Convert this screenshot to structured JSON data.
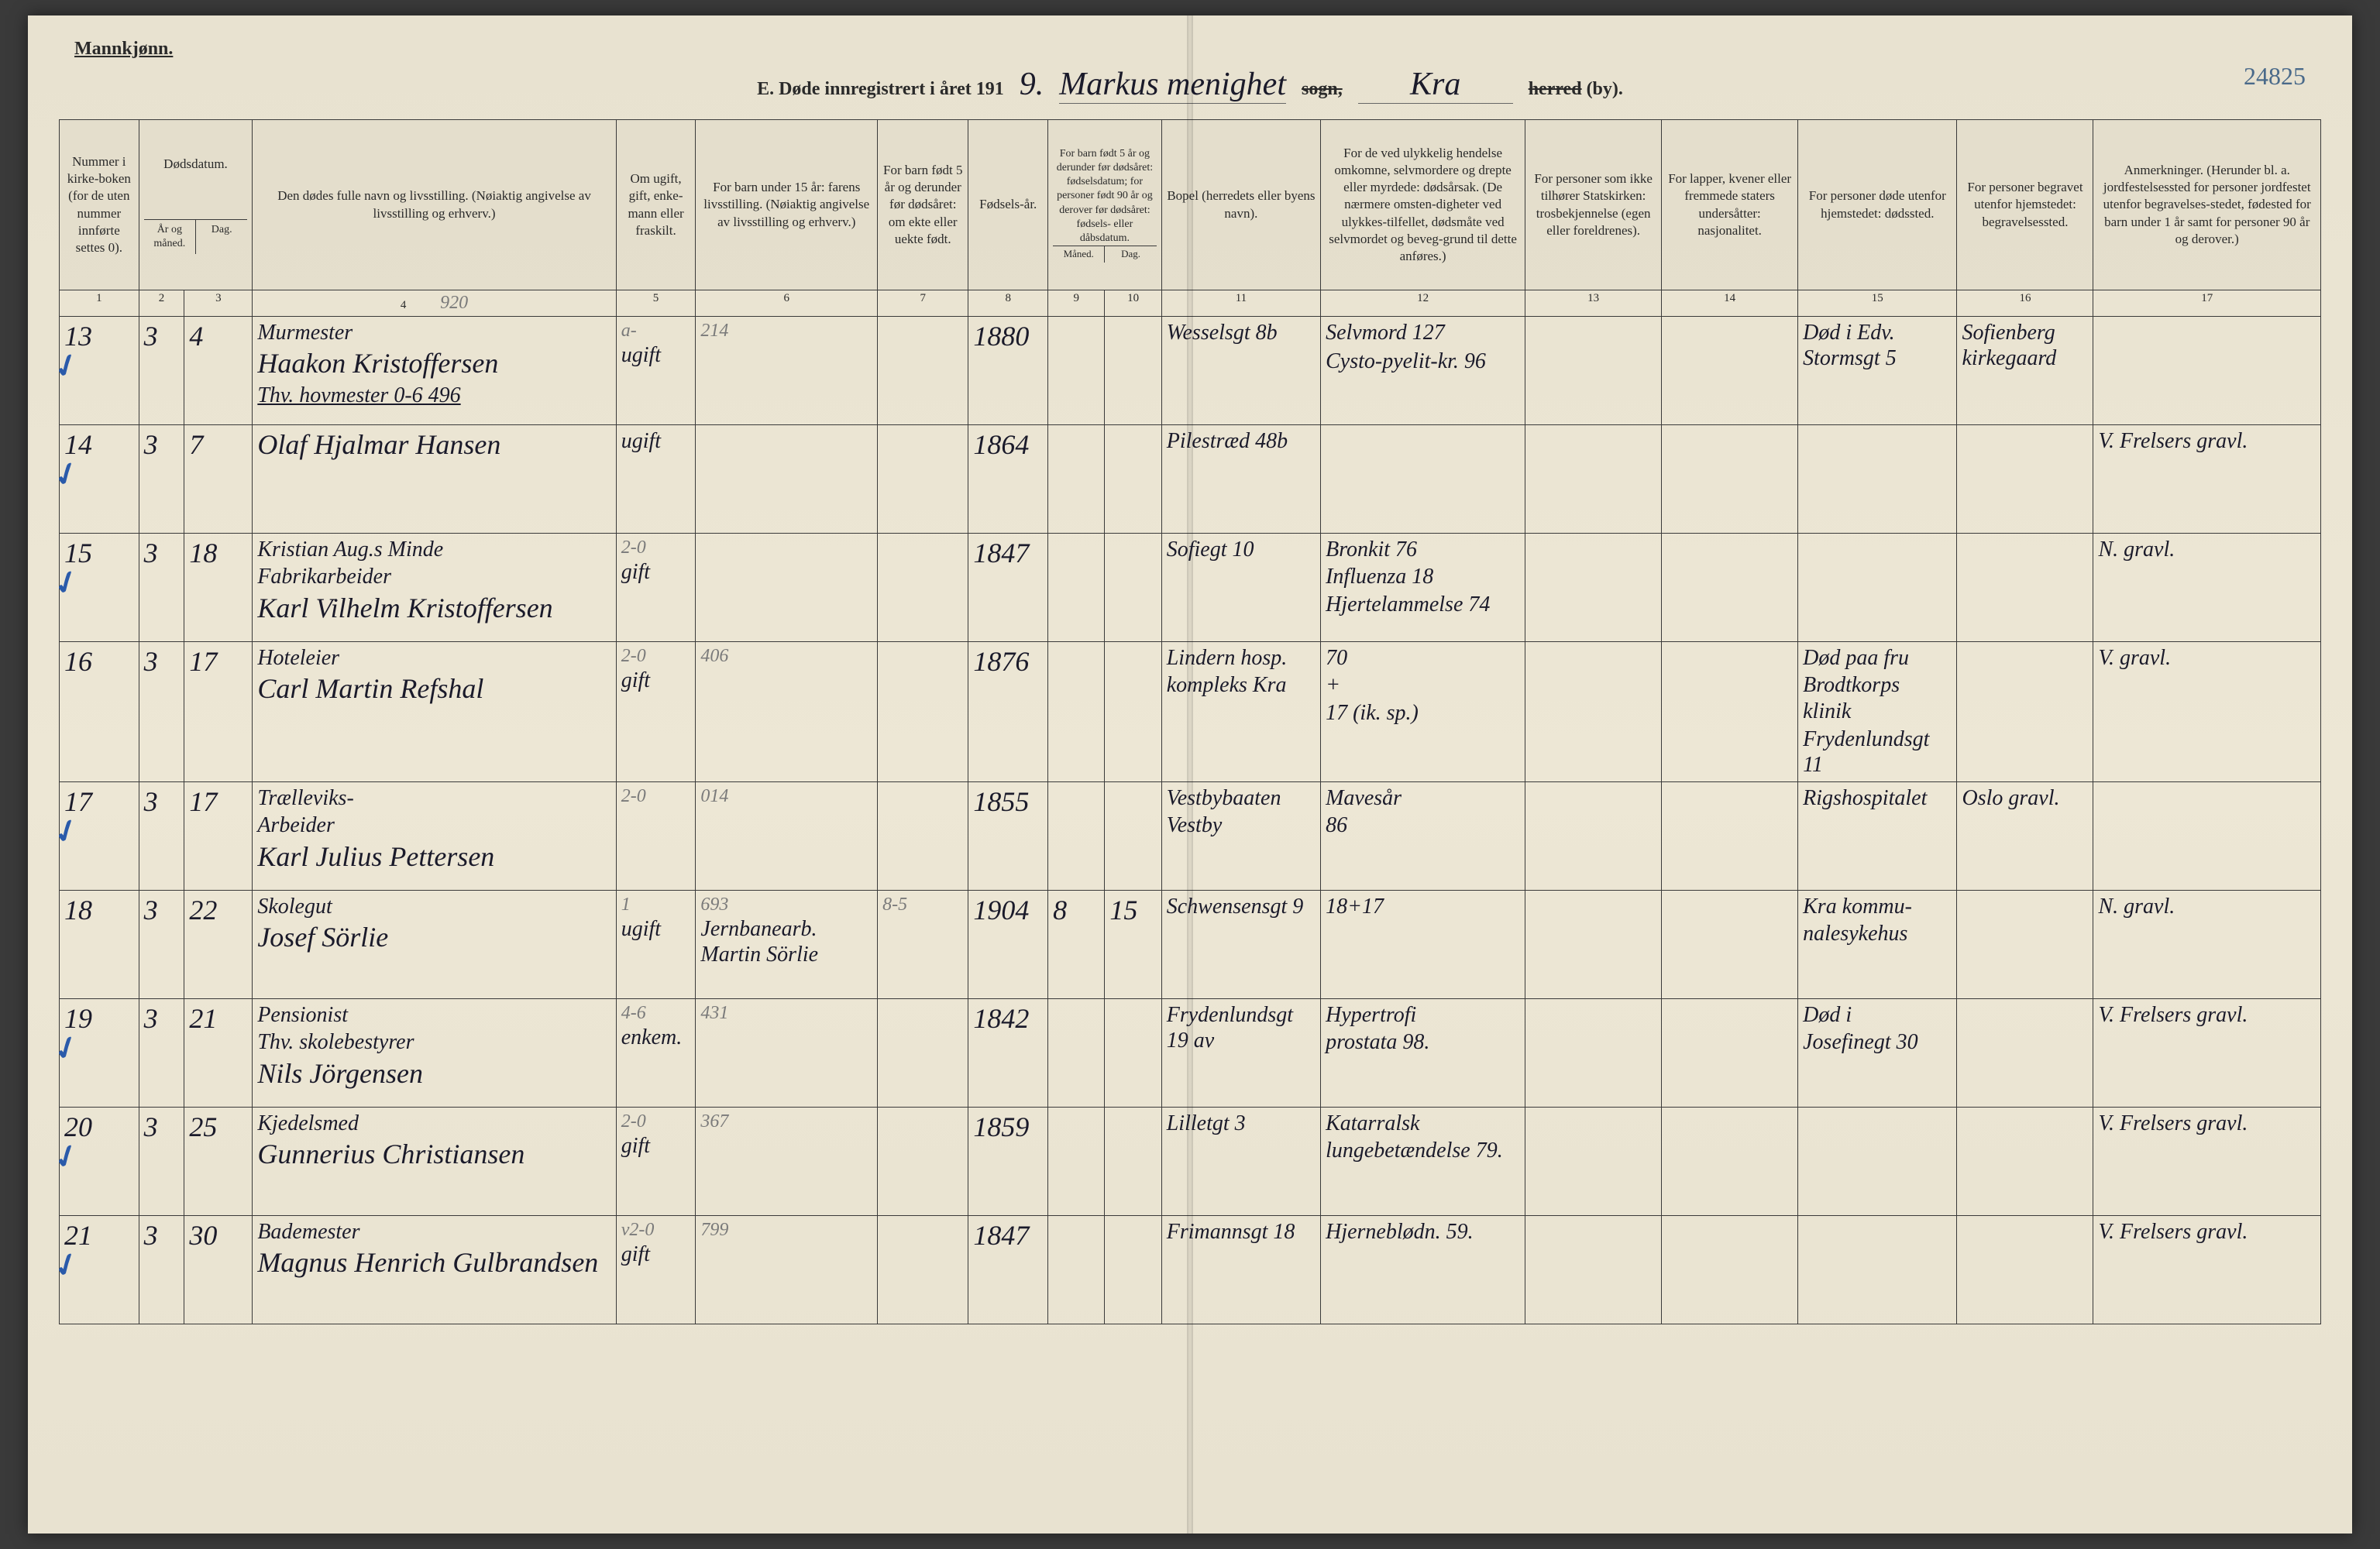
{
  "page_number": "24825",
  "header": {
    "gender_label": "Mannkjønn.",
    "title_prefix": "E. Døde innregistrert i året 191",
    "year_digit": "9.",
    "parish_hand": "Markus menighet",
    "sogn_label": "sogn,",
    "city_hand": "Kra",
    "herred_label": "herred (by)."
  },
  "columns": [
    {
      "num": "1",
      "label": "Nummer i kirke-boken (for de uten nummer innførte settes 0)."
    },
    {
      "num": "2",
      "label": "Dødsdatum.",
      "sub": "År og måned."
    },
    {
      "num": "3",
      "label": "",
      "sub": "Dag."
    },
    {
      "num": "4",
      "label": "Den dødes fulle navn og livsstilling. (Nøiaktig angivelse av livsstilling og erhverv.)"
    },
    {
      "num": "5",
      "label": "Om ugift, gift, enke-mann eller fraskilt."
    },
    {
      "num": "6",
      "label": "For barn under 15 år: farens livsstilling. (Nøiaktig angivelse av livsstilling og erhverv.)"
    },
    {
      "num": "7",
      "label": "For barn født 5 år og derunder før dødsåret: om ekte eller uekte født."
    },
    {
      "num": "8",
      "label": "Fødsels-år."
    },
    {
      "num": "9",
      "label": "For barn født 5 år og derunder før dødsåret: fødselsdatum; for personer født 90 år og derover før dødsåret: fødsels- eller dåbsdatum.",
      "sub": "Måned."
    },
    {
      "num": "10",
      "label": "",
      "sub": "Dag."
    },
    {
      "num": "11",
      "label": "Bopel (herredets eller byens navn)."
    },
    {
      "num": "12",
      "label": "For de ved ulykkelig hendelse omkomne, selvmordere og drepte eller myrdede: dødsårsak. (De nærmere omsten-digheter ved ulykkes-tilfellet, dødsmåte ved selvmordet og beveg-grund til dette anføres.)"
    },
    {
      "num": "13",
      "label": "For personer som ikke tilhører Statskirken: trosbekjennelse (egen eller foreldrenes)."
    },
    {
      "num": "14",
      "label": "For lapper, kvener eller fremmede staters undersåtter: nasjonalitet."
    },
    {
      "num": "15",
      "label": "For personer døde utenfor hjemstedet: dødssted."
    },
    {
      "num": "16",
      "label": "For personer begravet utenfor hjemstedet: begravelsessted."
    },
    {
      "num": "17",
      "label": "Anmerkninger. (Herunder bl. a. jordfestelsessted for personer jordfestet utenfor begravelses-stedet, fødested for barn under 1 år samt for personer 90 år og derover.)"
    }
  ],
  "pencil_top": "920",
  "rows": [
    {
      "check": true,
      "num": "13",
      "month": "3",
      "day": "4",
      "name_top": "Murmester",
      "name": "Haakon Kristoffersen",
      "status": "ugift",
      "pencil5": "a-",
      "pencil6": "214",
      "year": "1880",
      "residence": "Wesselsgt 8b",
      "cause_top": "Selvmord 127",
      "cause": "",
      "note_bottom": "Thv. hovmester    0-6  496",
      "note_bottom2": "Cysto-pyelit-kr. 96",
      "col15": "Død i Edv. Stormsgt 5",
      "col16": "Sofienberg kirkegaard"
    },
    {
      "check": true,
      "num": "14",
      "month": "3",
      "day": "7",
      "name_top": "",
      "name": "Olaf Hjalmar Hansen",
      "status": "ugift",
      "year": "1864",
      "residence": "Pilestræd 48b",
      "cause": "",
      "col17": "V. Frelsers gravl."
    },
    {
      "check": true,
      "num": "15",
      "month": "3",
      "day": "18",
      "name_top": "Fabrikarbeider",
      "name_top2": "Kristian Aug.s Minde",
      "name": "Karl Vilhelm Kristoffersen",
      "status": "gift",
      "pencil5": "2-0",
      "year": "1847",
      "residence": "Sofiegt 10",
      "cause_top": "Bronkit 76",
      "cause_mid": "Influenza 18",
      "cause": "Hjertelammelse 74",
      "col17": "N. gravl."
    },
    {
      "check": false,
      "num": "16",
      "month": "3",
      "day": "17",
      "name_top": "Hoteleier",
      "name": "Carl Martin Refshal",
      "status": "gift",
      "pencil5": "2-0",
      "pencil6": "406",
      "year": "1876",
      "residence_top": "Lindern hosp.",
      "residence": "kompleks Kra",
      "cause_top": "70",
      "cause_mid": "+",
      "cause": "17 (ik. sp.)",
      "col15_top": "Død paa fru",
      "col15_mid": "Brodtkorps klinik",
      "col15": "Frydenlundsgt 11",
      "col17": "V. gravl."
    },
    {
      "check": true,
      "num": "17",
      "month": "3",
      "day": "17",
      "name_top": "Arbeider",
      "name_top2": "Trælleviks-",
      "name": "Karl Julius Pettersen",
      "pencil5": "2-0",
      "pencil6": "014",
      "year": "1855",
      "residence_top": "Vestbybaaten",
      "residence": "Vestby",
      "cause_top": "Mavesår",
      "cause": "86",
      "col15": "Rigshospitalet",
      "col16": "Oslo gravl."
    },
    {
      "check": false,
      "num": "18",
      "month": "3",
      "day": "22",
      "name_top": "Skolegut",
      "name": "Josef Sörlie",
      "status": "ugift",
      "father": "Jernbanearb. Martin Sörlie",
      "pencil5": "1",
      "pencil6": "693",
      "pencil7": "8-5",
      "year": "1904",
      "birth_month": "8",
      "birth_day": "15",
      "residence": "Schwensensgt 9",
      "cause": "18+17",
      "col15_top": "Kra kommu-",
      "col15": "nalesykehus",
      "col17": "N. gravl."
    },
    {
      "check": true,
      "num": "19",
      "month": "3",
      "day": "21",
      "name_top": "Thv. skolebestyrer",
      "name_top2": "Pensionist",
      "name": "Nils Jörgensen",
      "status": "enkem.",
      "pencil5": "4-6",
      "pencil6": "431",
      "year": "1842",
      "residence": "Frydenlundsgt 19 av",
      "cause_top": "Hypertrofi",
      "cause": "prostata 98.",
      "col15_top": "Død i",
      "col15": "Josefinegt 30",
      "col17": "V. Frelsers gravl."
    },
    {
      "check": true,
      "num": "20",
      "month": "3",
      "day": "25",
      "name_top": "Kjedelsmed",
      "name": "Gunnerius Christiansen",
      "status": "gift",
      "pencil5": "2-0",
      "pencil6": "367",
      "year": "1859",
      "residence": "Lilletgt 3",
      "cause_top": "Katarralsk",
      "cause": "lungebetændelse 79.",
      "col17": "V. Frelsers gravl."
    },
    {
      "check": true,
      "num": "21",
      "month": "3",
      "day": "30",
      "name_top": "Bademester",
      "name": "Magnus Henrich Gulbrandsen",
      "status": "gift",
      "pencil5": "v2-0",
      "pencil6": "799",
      "year": "1847",
      "residence": "Frimannsgt 18",
      "cause": "Hjerneblødn. 59.",
      "col17": "V. Frelsers gravl."
    }
  ]
}
